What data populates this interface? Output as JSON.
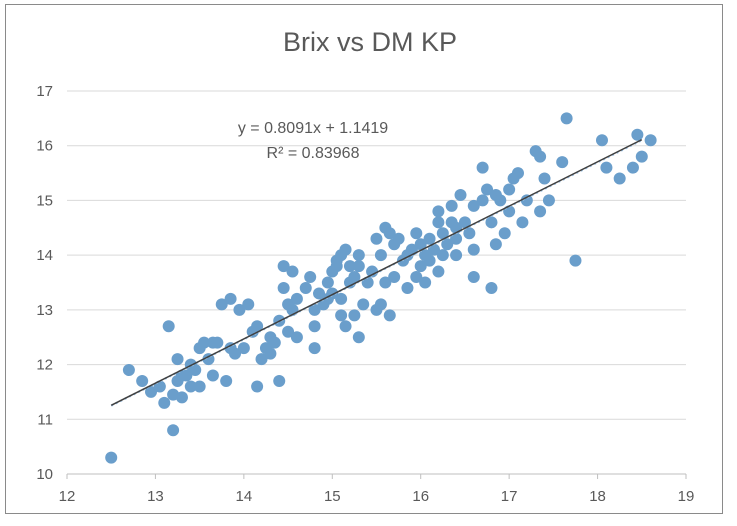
{
  "chart_data": {
    "type": "scatter",
    "title": "Brix vs DM KP",
    "xlabel": "",
    "ylabel": "",
    "xlim": [
      12,
      19
    ],
    "ylim": [
      10,
      17
    ],
    "x_ticks": [
      "12",
      "13",
      "14",
      "15",
      "16",
      "17",
      "18",
      "19"
    ],
    "y_ticks": [
      "10",
      "11",
      "12",
      "13",
      "14",
      "15",
      "16",
      "17"
    ],
    "grid": "horizontal",
    "legend": "none",
    "marker_color": "#6a9ecb",
    "trendline_color": "#404040",
    "dotted_trend_color": "#9dc3e6",
    "gridline_color": "#d9d9d9",
    "annotations": {
      "equation": "y = 0.8091x + 1.1419",
      "r_squared": "R² = 0.83968"
    },
    "trendline": {
      "slope": 0.8091,
      "intercept": 1.1419,
      "x_range": [
        12.5,
        18.5
      ]
    },
    "dotted_trendline": {
      "points": [
        [
          12.5,
          11.25
        ],
        [
          18.5,
          16.1
        ]
      ]
    },
    "points": [
      [
        12.5,
        10.3
      ],
      [
        12.7,
        11.9
      ],
      [
        12.85,
        11.7
      ],
      [
        12.95,
        11.5
      ],
      [
        13.05,
        11.6
      ],
      [
        13.1,
        11.3
      ],
      [
        13.15,
        12.7
      ],
      [
        13.2,
        11.45
      ],
      [
        13.2,
        10.8
      ],
      [
        13.25,
        11.7
      ],
      [
        13.25,
        12.1
      ],
      [
        13.3,
        11.8
      ],
      [
        13.3,
        11.4
      ],
      [
        13.35,
        11.8
      ],
      [
        13.4,
        12.0
      ],
      [
        13.4,
        11.6
      ],
      [
        13.45,
        11.9
      ],
      [
        13.5,
        12.3
      ],
      [
        13.55,
        12.4
      ],
      [
        13.5,
        11.6
      ],
      [
        13.6,
        12.1
      ],
      [
        13.65,
        12.4
      ],
      [
        13.65,
        11.8
      ],
      [
        13.7,
        12.4
      ],
      [
        13.75,
        13.1
      ],
      [
        13.8,
        11.7
      ],
      [
        13.85,
        13.2
      ],
      [
        13.85,
        12.3
      ],
      [
        13.9,
        12.2
      ],
      [
        13.95,
        13.0
      ],
      [
        14.0,
        12.3
      ],
      [
        14.05,
        13.1
      ],
      [
        14.1,
        12.6
      ],
      [
        14.15,
        12.7
      ],
      [
        14.15,
        11.6
      ],
      [
        14.2,
        12.1
      ],
      [
        14.25,
        12.3
      ],
      [
        14.3,
        12.5
      ],
      [
        14.3,
        12.2
      ],
      [
        14.35,
        12.4
      ],
      [
        14.4,
        12.8
      ],
      [
        14.4,
        11.7
      ],
      [
        14.45,
        13.4
      ],
      [
        14.45,
        13.8
      ],
      [
        14.5,
        13.1
      ],
      [
        14.5,
        12.6
      ],
      [
        14.55,
        13.0
      ],
      [
        14.55,
        13.7
      ],
      [
        14.6,
        12.5
      ],
      [
        14.6,
        13.2
      ],
      [
        14.7,
        13.4
      ],
      [
        14.75,
        13.6
      ],
      [
        14.8,
        13.0
      ],
      [
        14.8,
        12.7
      ],
      [
        14.8,
        12.3
      ],
      [
        14.85,
        13.3
      ],
      [
        14.9,
        13.1
      ],
      [
        14.95,
        13.5
      ],
      [
        14.95,
        13.2
      ],
      [
        15.0,
        13.7
      ],
      [
        15.0,
        13.3
      ],
      [
        15.05,
        13.8
      ],
      [
        15.05,
        13.9
      ],
      [
        15.1,
        14.0
      ],
      [
        15.1,
        13.2
      ],
      [
        15.1,
        12.9
      ],
      [
        15.15,
        14.1
      ],
      [
        15.15,
        12.7
      ],
      [
        15.2,
        13.5
      ],
      [
        15.2,
        13.8
      ],
      [
        15.25,
        12.9
      ],
      [
        15.25,
        13.6
      ],
      [
        15.3,
        14.0
      ],
      [
        15.3,
        13.8
      ],
      [
        15.3,
        12.5
      ],
      [
        15.35,
        13.1
      ],
      [
        15.4,
        13.5
      ],
      [
        15.45,
        13.7
      ],
      [
        15.5,
        13.0
      ],
      [
        15.5,
        14.3
      ],
      [
        15.55,
        13.1
      ],
      [
        15.55,
        14.0
      ],
      [
        15.6,
        14.5
      ],
      [
        15.6,
        13.5
      ],
      [
        15.65,
        12.9
      ],
      [
        15.65,
        14.4
      ],
      [
        15.7,
        13.6
      ],
      [
        15.7,
        14.2
      ],
      [
        15.75,
        14.3
      ],
      [
        15.8,
        13.9
      ],
      [
        15.85,
        13.4
      ],
      [
        15.85,
        14.0
      ],
      [
        15.9,
        14.1
      ],
      [
        15.95,
        13.6
      ],
      [
        15.95,
        14.4
      ],
      [
        16.0,
        13.8
      ],
      [
        16.0,
        14.2
      ],
      [
        16.05,
        14.0
      ],
      [
        16.05,
        13.5
      ],
      [
        16.1,
        13.9
      ],
      [
        16.1,
        14.3
      ],
      [
        16.15,
        14.1
      ],
      [
        16.2,
        13.7
      ],
      [
        16.2,
        14.8
      ],
      [
        16.2,
        14.6
      ],
      [
        16.25,
        14.0
      ],
      [
        16.25,
        14.4
      ],
      [
        16.3,
        14.2
      ],
      [
        16.35,
        14.6
      ],
      [
        16.35,
        14.9
      ],
      [
        16.4,
        14.5
      ],
      [
        16.4,
        14.3
      ],
      [
        16.4,
        14.0
      ],
      [
        16.45,
        15.1
      ],
      [
        16.5,
        14.6
      ],
      [
        16.55,
        14.4
      ],
      [
        16.6,
        14.9
      ],
      [
        16.6,
        13.6
      ],
      [
        16.6,
        14.1
      ],
      [
        16.7,
        15.0
      ],
      [
        16.7,
        15.6
      ],
      [
        16.75,
        15.2
      ],
      [
        16.8,
        14.6
      ],
      [
        16.8,
        13.4
      ],
      [
        16.85,
        14.2
      ],
      [
        16.85,
        15.1
      ],
      [
        16.9,
        15.0
      ],
      [
        16.95,
        14.4
      ],
      [
        17.0,
        15.2
      ],
      [
        17.0,
        14.8
      ],
      [
        17.05,
        15.4
      ],
      [
        17.1,
        15.5
      ],
      [
        17.15,
        14.6
      ],
      [
        17.2,
        15.0
      ],
      [
        17.3,
        15.9
      ],
      [
        17.35,
        15.8
      ],
      [
        17.35,
        14.8
      ],
      [
        17.4,
        15.4
      ],
      [
        17.45,
        15.0
      ],
      [
        17.6,
        15.7
      ],
      [
        17.65,
        16.5
      ],
      [
        17.75,
        13.9
      ],
      [
        18.05,
        16.1
      ],
      [
        18.1,
        15.6
      ],
      [
        18.25,
        15.4
      ],
      [
        18.4,
        15.6
      ],
      [
        18.45,
        16.2
      ],
      [
        18.5,
        15.8
      ],
      [
        18.6,
        16.1
      ]
    ]
  }
}
